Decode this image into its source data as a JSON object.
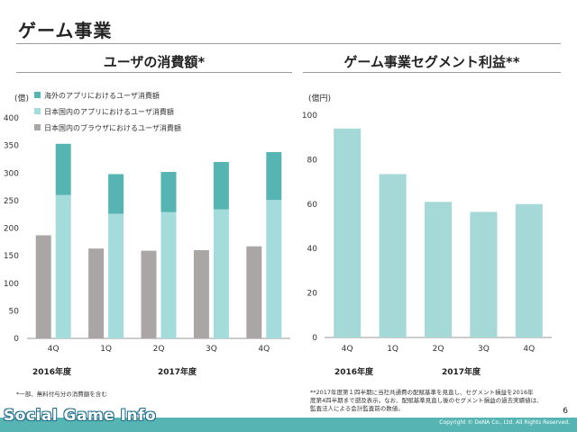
{
  "page": {
    "title": "ゲーム事業",
    "page_number": "6",
    "copyright": "Copyright © DeNA Co., Ltd. All Rights Reserved.",
    "watermark": "Social Game Info"
  },
  "left": {
    "title": "ユーザの消費額*",
    "unit": "(億)",
    "fy_labels": [
      "2016年度",
      "2017年度"
    ],
    "footnote": "*一部、無料付与分の消費額を含む"
  },
  "right": {
    "title": "ゲーム事業セグメント利益**",
    "unit": "(億円)",
    "fy_labels": [
      "2016年度",
      "2017年度"
    ],
    "footnote_lines": [
      "**2017年度第１四半期に当社共通費の配賦基準を見直し、セグメント損益を2016年",
      "度第4四半期まで遡及表示。なお、配賦基準見直し後のセグメント損益の過去実績値は、",
      "監査法人による会計監査前の数値。"
    ]
  },
  "colors": {
    "browser": "#aaa6a6",
    "domestic_app": "#a4dcdb",
    "overseas_app": "#56b5b2",
    "profit": "#a4d9d8",
    "footer": "#56b5b2"
  },
  "chart_data": [
    {
      "type": "bar",
      "categories": [
        "4Q",
        "1Q",
        "2Q",
        "3Q",
        "4Q"
      ],
      "ylim": [
        0,
        400
      ],
      "yticks": [
        0,
        50,
        100,
        150,
        200,
        250,
        300,
        350,
        400
      ],
      "legend_position": "top-left",
      "grid": false,
      "series": [
        {
          "name": "日本国内のブラウザにおけるユーザ消費額",
          "values": [
            187,
            163,
            159,
            160,
            167
          ]
        },
        {
          "name": "日本国内のアプリにおけるユーザ消費額",
          "values": [
            260,
            226,
            229,
            234,
            251
          ]
        },
        {
          "name": "海外のアプリにおけるユーザ消費額",
          "values": [
            93,
            72,
            73,
            86,
            87
          ]
        }
      ],
      "stacked_pairs": "browser bar alone; domestic + overseas stacked"
    },
    {
      "type": "bar",
      "categories": [
        "4Q",
        "1Q",
        "2Q",
        "3Q",
        "4Q"
      ],
      "ylim": [
        0,
        100
      ],
      "yticks": [
        0,
        20,
        40,
        60,
        80,
        100
      ],
      "grid": false,
      "series": [
        {
          "name": "",
          "values": [
            94,
            73.5,
            61,
            56.5,
            60
          ]
        }
      ]
    }
  ]
}
